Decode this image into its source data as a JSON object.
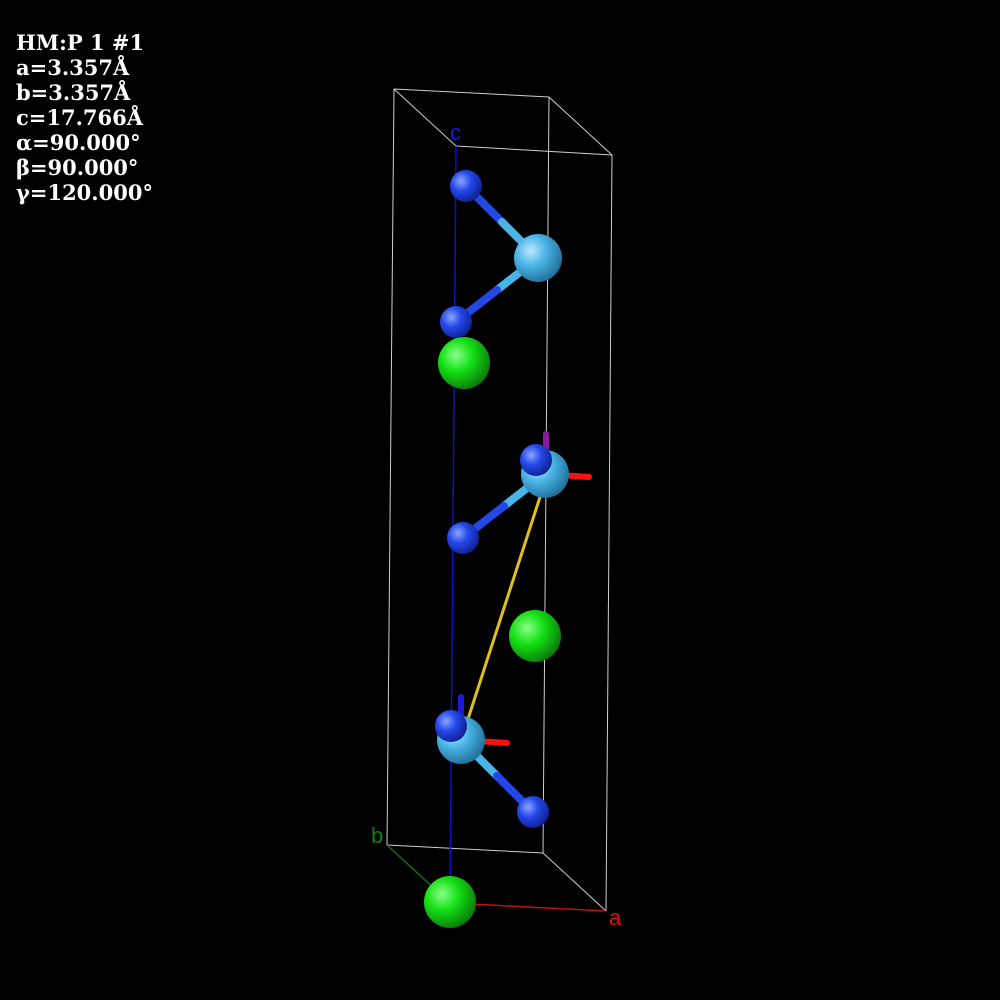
{
  "cell_info": {
    "space_group": "HM:P 1 #1",
    "a": "a=3.357Å",
    "b": "b=3.357Å",
    "c": "c=17.766Å",
    "alpha": "α=90.000°",
    "beta": "β=90.000°",
    "gamma": "γ=120.000°"
  },
  "axes": {
    "a_label": "a",
    "b_label": "b",
    "c_label": "c",
    "a_color": "#e01010",
    "b_color": "#108010",
    "c_color": "#1010d0"
  },
  "atom_colors": {
    "green_atom": "#10d010",
    "light_blue_atom": "#4ab4e6",
    "dark_blue_atom": "#2040e0",
    "bond_line": "#e0c020",
    "cell_edges": "#cccccc"
  }
}
